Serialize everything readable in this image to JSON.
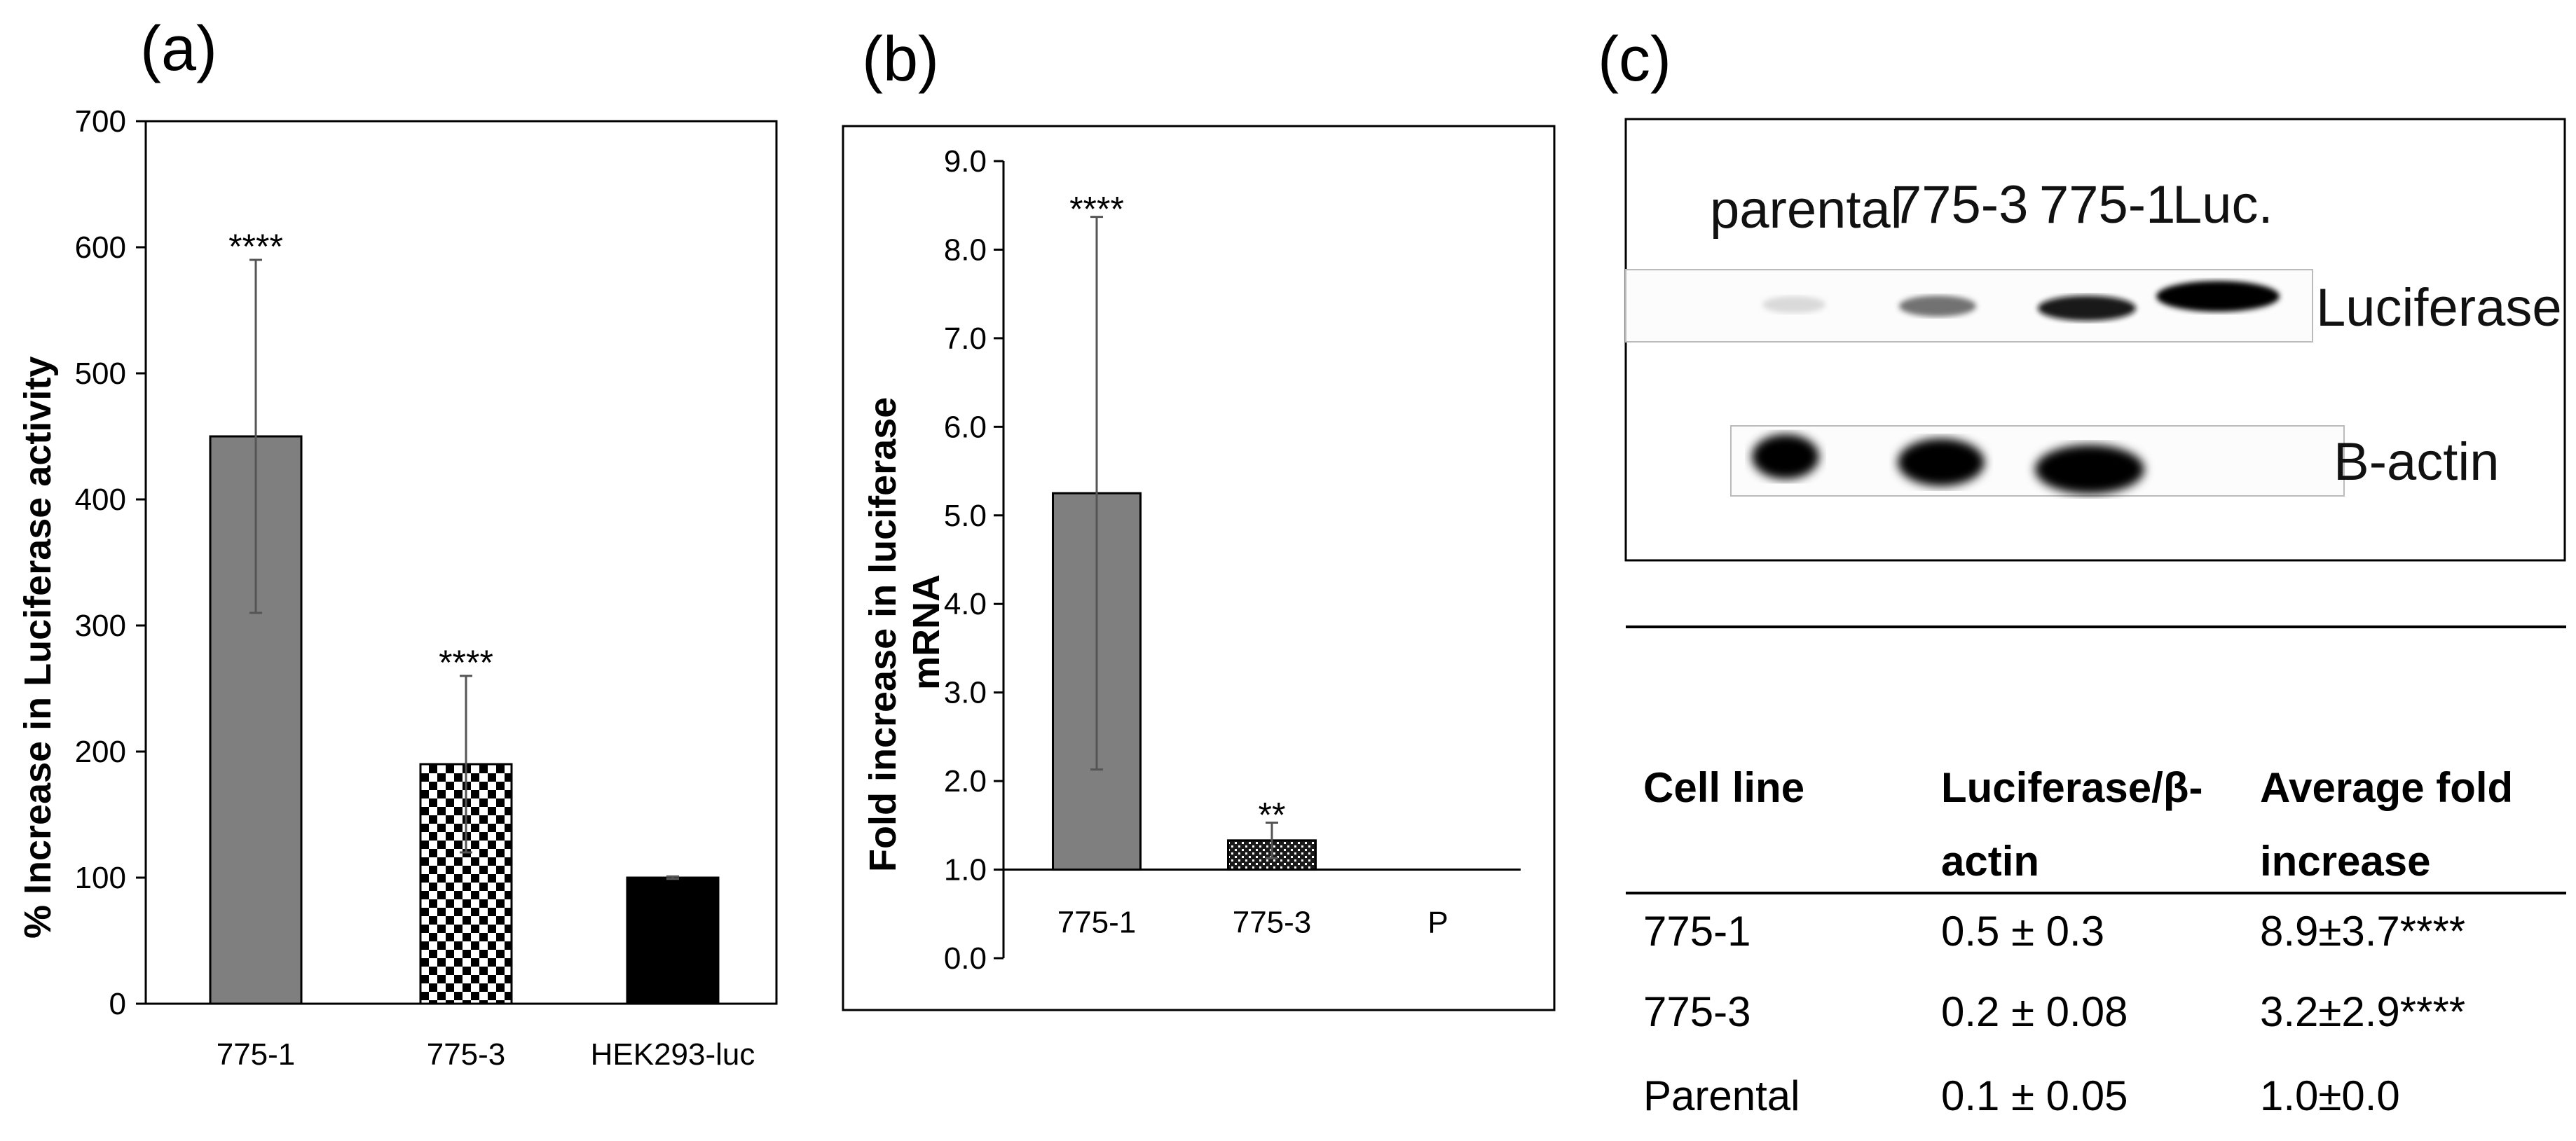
{
  "panels": {
    "a": "(a)",
    "b": "(b)",
    "c": "(c)"
  },
  "chart_data": [
    {
      "type": "bar",
      "panel": "(a)",
      "ylabel": "% Increase in Luciferase activity",
      "xlabel": "",
      "ylim": [
        0,
        700
      ],
      "yticks": [
        "0",
        "100",
        "200",
        "300",
        "400",
        "500",
        "600",
        "700"
      ],
      "categories": [
        "775-1",
        "775-3",
        "HEK293-luc"
      ],
      "values": [
        450,
        190,
        100
      ],
      "errors": [
        140,
        70,
        1
      ],
      "significance": [
        "****",
        "****",
        ""
      ],
      "fills": [
        "gray",
        "checker",
        "black"
      ],
      "colors": {
        "gray": "#7f7f7f",
        "black": "#000000"
      }
    },
    {
      "type": "bar",
      "panel": "(b)",
      "ylabel": "Fold increase in luciferase mRNA",
      "ylabel_lines": [
        "Fold increase in luciferase",
        "mRNA"
      ],
      "xlabel": "",
      "ylim": [
        0,
        9
      ],
      "baseline": 1.0,
      "yticks": [
        "0.0",
        "1.0",
        "2.0",
        "3.0",
        "4.0",
        "5.0",
        "6.0",
        "7.0",
        "8.0",
        "9.0"
      ],
      "categories": [
        "775-1",
        "775-3",
        "P"
      ],
      "values": [
        5.25,
        1.33,
        1.0
      ],
      "errors": [
        3.12,
        0.2,
        0
      ],
      "significance": [
        "****",
        "**",
        ""
      ],
      "fills": [
        "gray",
        "dotted",
        "none"
      ],
      "colors": {
        "gray": "#7f7f7f"
      }
    },
    {
      "type": "table",
      "panel": "(c)",
      "blot": {
        "lanes": [
          "parental",
          "775-3",
          "775-1",
          "Luc."
        ],
        "rows": [
          "Luciferase",
          "B-actin"
        ]
      },
      "header": [
        [
          "Cell line"
        ],
        [
          "Luciferase/β-",
          "actin"
        ],
        [
          "Average fold",
          "increase"
        ]
      ],
      "rows": [
        [
          "775-1",
          "0.5 ± 0.3",
          "8.9±3.7****"
        ],
        [
          "775-3",
          "0.2 ± 0.08",
          "3.2±2.9****"
        ],
        [
          "Parental",
          "0.1 ± 0.05",
          "1.0±0.0"
        ]
      ]
    }
  ]
}
